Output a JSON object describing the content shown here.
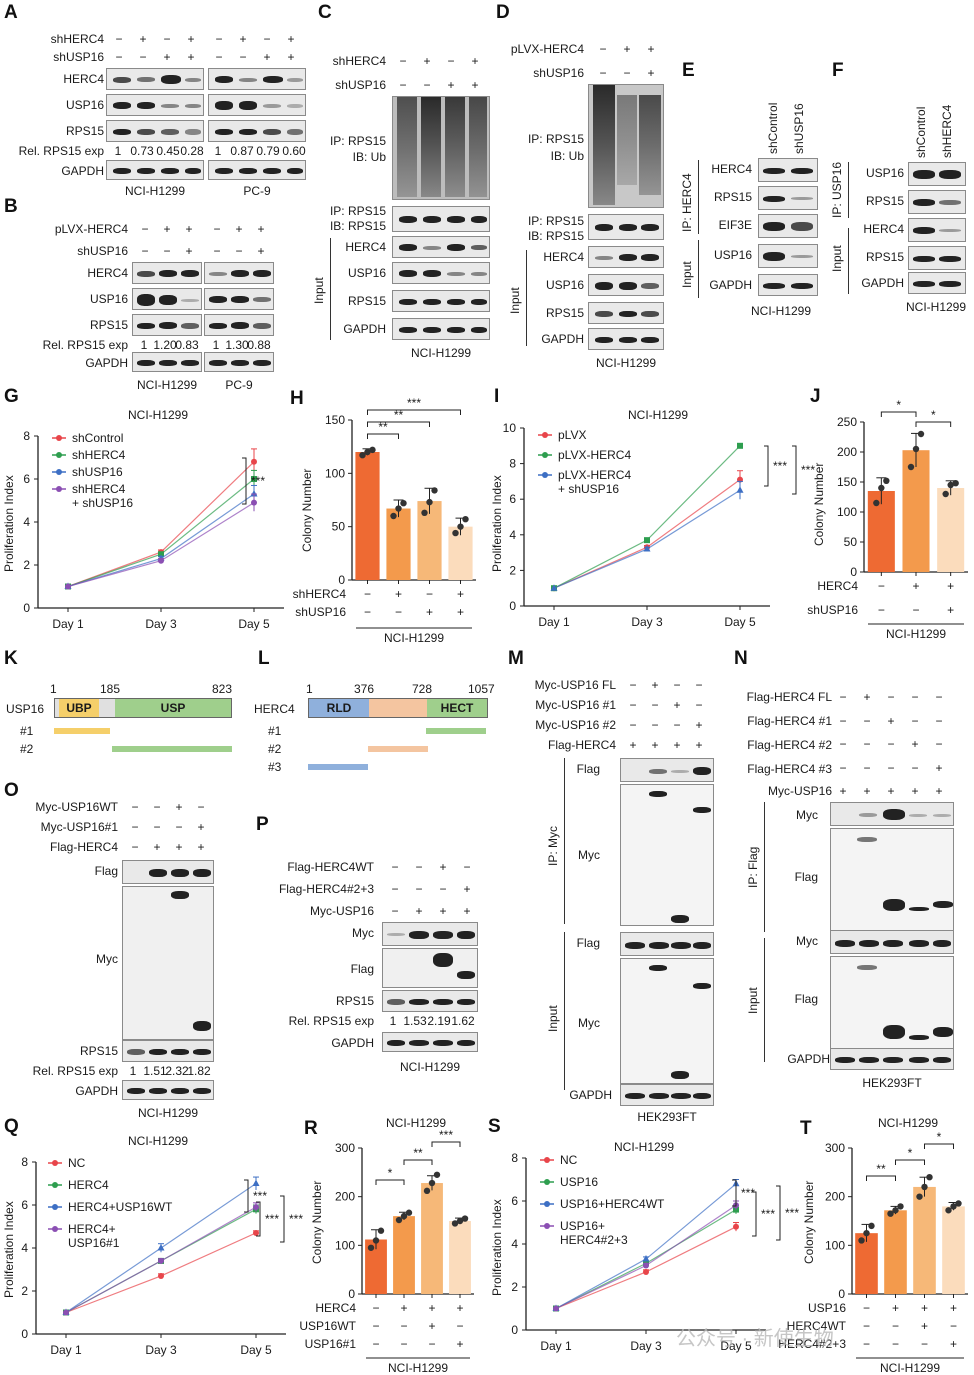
{
  "letters": [
    "A",
    "B",
    "C",
    "D",
    "E",
    "F",
    "G",
    "H",
    "I",
    "J",
    "K",
    "L",
    "M",
    "N",
    "O",
    "P",
    "Q",
    "R",
    "S",
    "T"
  ],
  "A": {
    "rows": [
      "shHERC4",
      "shUSP16"
    ],
    "signs1": [
      "−",
      "+",
      "−",
      "+"
    ],
    "signs2": [
      "−",
      "−",
      "+",
      "+"
    ],
    "bands": [
      "HERC4",
      "USP16",
      "RPS15",
      "GAPDH"
    ],
    "rel_label": "Rel. RPS15 exp",
    "rel1": [
      "1",
      "0.73",
      "0.45",
      "0.28"
    ],
    "rel2": [
      "1",
      "0.87",
      "0.79",
      "0.60"
    ],
    "cells": [
      "NCI-H1299",
      "PC-9"
    ]
  },
  "B": {
    "rows": [
      "pLVX-HERC4",
      "shUSP16"
    ],
    "signs1": [
      "−",
      "+",
      "+"
    ],
    "signs2": [
      "−",
      "−",
      "+"
    ],
    "bands": [
      "HERC4",
      "USP16",
      "RPS15",
      "GAPDH"
    ],
    "rel_label": "Rel. RPS15 exp",
    "rel1": [
      "1",
      "1.20",
      "0.83"
    ],
    "rel2": [
      "1",
      "1.30",
      "0.88"
    ],
    "cells": [
      "NCI-H1299",
      "PC-9"
    ]
  },
  "C": {
    "rows": [
      "shHERC4",
      "shUSP16"
    ],
    "signs1": [
      "−",
      "+",
      "−",
      "+"
    ],
    "signs2": [
      "−",
      "−",
      "+",
      "+"
    ],
    "ip1": "IP: RPS15",
    "ib1": "IB: Ub",
    "ip2": "IP: RPS15",
    "ib2": "IB: RPS15",
    "bands": [
      "HERC4",
      "USP16",
      "RPS15",
      "GAPDH"
    ],
    "input": "Input",
    "cell": "NCI-H1299"
  },
  "D": {
    "rows": [
      "pLVX-HERC4",
      "shUSP16"
    ],
    "signs1": [
      "−",
      "+",
      "+"
    ],
    "signs2": [
      "−",
      "−",
      "+"
    ],
    "ip1": "IP: RPS15",
    "ib1": "IB: Ub",
    "ip2": "IP: RPS15",
    "ib2": "IB: RPS15",
    "bands": [
      "HERC4",
      "USP16",
      "RPS15",
      "GAPDH"
    ],
    "input": "Input",
    "cell": "NCI-H1299"
  },
  "E": {
    "cols": [
      "shControl",
      "shUSP16"
    ],
    "ip": "IP: HERC4",
    "input": "Input",
    "bands": [
      "HERC4",
      "RPS15",
      "EIF3E",
      "USP16",
      "GAPDH"
    ],
    "cell": "NCI-H1299"
  },
  "F": {
    "cols": [
      "shControl",
      "shHERC4"
    ],
    "ip": "IP: USP16",
    "input": "Input",
    "bands": [
      "USP16",
      "RPS15",
      "HERC4",
      "RPS15",
      "GAPDH"
    ],
    "cell": "NCI-H1299"
  },
  "G": {
    "title": "NCI-H1299",
    "ylabel": "Proliferation Index",
    "sig": "***"
  },
  "H": {
    "ylabel": "Colony Number",
    "rows": [
      "shHERC4",
      "shUSP16"
    ],
    "signs1": [
      "−",
      "+",
      "−",
      "+"
    ],
    "signs2": [
      "−",
      "−",
      "+",
      "+"
    ],
    "sig": [
      "**",
      "**",
      "***"
    ],
    "cell": "NCI-H1299"
  },
  "I": {
    "title": "NCI-H1299",
    "ylabel": "Proliferation Index",
    "sig": [
      "***",
      "***"
    ]
  },
  "J": {
    "ylabel": "Colony Number",
    "rows": [
      "HERC4",
      "shUSP16"
    ],
    "signs1": [
      "−",
      "+",
      "+"
    ],
    "signs2": [
      "−",
      "−",
      "+"
    ],
    "sig": [
      "*",
      "*"
    ],
    "cell": "NCI-H1299"
  },
  "K": {
    "name": "USP16",
    "nums": [
      "1",
      "185",
      "823"
    ],
    "d1": "UBP",
    "d2": "USP",
    "c1": "#1",
    "c2": "#2"
  },
  "L": {
    "name": "HERC4",
    "nums": [
      "1",
      "376",
      "728",
      "1057"
    ],
    "d1": "RLD",
    "d3": "HECT",
    "c1": "#1",
    "c2": "#2",
    "c3": "#3"
  },
  "M": {
    "rows": [
      "Myc-USP16 FL",
      "Myc-USP16 #1",
      "Myc-USP16 #2",
      "Flag-HERC4"
    ],
    "signs": [
      [
        "−",
        "+",
        "−",
        "−"
      ],
      [
        "−",
        "−",
        "+",
        "−"
      ],
      [
        "−",
        "−",
        "−",
        "+"
      ],
      [
        "+",
        "+",
        "+",
        "+"
      ]
    ],
    "ip": "IP: Myc",
    "input": "Input",
    "b_ip": [
      "Flag",
      "Myc"
    ],
    "b_in": [
      "Flag",
      "Myc"
    ],
    "gapdh": "GAPDH",
    "cell": "HEK293FT"
  },
  "N": {
    "rows": [
      "Flag-HERC4 FL",
      "Flag-HERC4 #1",
      "Flag-HERC4 #2",
      "Flag-HERC4 #3",
      "Myc-USP16"
    ],
    "signs": [
      [
        "−",
        "+",
        "−",
        "−",
        "−"
      ],
      [
        "−",
        "−",
        "+",
        "−",
        "−"
      ],
      [
        "−",
        "−",
        "−",
        "+",
        "−"
      ],
      [
        "−",
        "−",
        "−",
        "−",
        "+"
      ],
      [
        "+",
        "+",
        "+",
        "+",
        "+"
      ]
    ],
    "ip": "IP: Flag",
    "input": "Input",
    "b_ip": [
      "Myc",
      "Flag"
    ],
    "b_in": [
      "Myc",
      "Flag"
    ],
    "gapdh": "GAPDH",
    "cell": "HEK293FT"
  },
  "O": {
    "rows": [
      "Myc-USP16WT",
      "Myc-USP16#1",
      "Flag-HERC4"
    ],
    "signs": [
      [
        "−",
        "−",
        "+",
        "−"
      ],
      [
        "−",
        "−",
        "−",
        "+"
      ],
      [
        "−",
        "+",
        "+",
        "+"
      ]
    ],
    "bands": [
      "Flag",
      "Myc",
      "RPS15"
    ],
    "rel_label": "Rel. RPS15 exp",
    "rel": [
      "1",
      "1.51",
      "2.32",
      "1.82"
    ],
    "gapdh": "GAPDH",
    "cell": "NCI-H1299"
  },
  "P": {
    "rows": [
      "Flag-HERC4WT",
      "Flag-HERC4#2+3",
      "Myc-USP16"
    ],
    "signs": [
      [
        "−",
        "−",
        "+",
        "−"
      ],
      [
        "−",
        "−",
        "−",
        "+"
      ],
      [
        "−",
        "+",
        "+",
        "+"
      ]
    ],
    "bands": [
      "Myc",
      "Flag",
      "RPS15"
    ],
    "rel_label": "Rel. RPS15 exp",
    "rel": [
      "1",
      "1.53",
      "2.19",
      "1.62"
    ],
    "gapdh": "GAPDH",
    "cell": "NCI-H1299"
  },
  "Q": {
    "title": "NCI-H1299",
    "ylabel": "Proliferation Index",
    "sig": [
      "***",
      "***",
      "***"
    ]
  },
  "R": {
    "title": "NCI-H1299",
    "ylabel": "Colony Number",
    "rows": [
      "HERC4",
      "USP16WT",
      "USP16#1"
    ],
    "signs": [
      [
        "−",
        "+",
        "+",
        "+"
      ],
      [
        "−",
        "−",
        "+",
        "−"
      ],
      [
        "−",
        "−",
        "−",
        "+"
      ]
    ],
    "sig": [
      "*",
      "**",
      "***"
    ],
    "cell": "NCI-H1299"
  },
  "S": {
    "title": "NCI-H1299",
    "ylabel": "Proliferation Index",
    "sig": [
      "***",
      "***",
      "***"
    ]
  },
  "T": {
    "title": "NCI-H1299",
    "ylabel": "Colony Number",
    "rows": [
      "USP16",
      "HERC4WT",
      "HERC4#2+3"
    ],
    "signs": [
      [
        "−",
        "+",
        "+",
        "+"
      ],
      [
        "−",
        "−",
        "+",
        "−"
      ],
      [
        "−",
        "−",
        "−",
        "+"
      ]
    ],
    "sig": [
      "**",
      "*",
      "*"
    ],
    "cell": "NCI-H1299"
  },
  "watermark": "公众号 · 新使生物",
  "chart_data": [
    {
      "id": "G",
      "type": "line",
      "x": [
        "Day 1",
        "Day 3",
        "Day 5"
      ],
      "ylim": [
        0,
        8
      ],
      "yticks": [
        0,
        2,
        4,
        6,
        8
      ],
      "series": [
        {
          "name": "shControl",
          "color": "#e8454a",
          "values": [
            1,
            2.6,
            6.8
          ],
          "err": [
            0,
            0.1,
            0.6
          ]
        },
        {
          "name": "shHERC4",
          "color": "#2e9e4f",
          "values": [
            1,
            2.5,
            6.0
          ],
          "err": [
            0,
            0.1,
            0.4
          ]
        },
        {
          "name": "shUSP16",
          "color": "#3d6fc4",
          "values": [
            1,
            2.3,
            5.3
          ],
          "err": [
            0,
            0.1,
            0.4
          ]
        },
        {
          "name": "shHERC4\n+ shUSP16",
          "color": "#8b4fb3",
          "values": [
            1,
            2.2,
            4.9
          ],
          "err": [
            0,
            0.1,
            0.4
          ]
        }
      ]
    },
    {
      "id": "H",
      "type": "bar",
      "ylim": [
        0,
        150
      ],
      "yticks": [
        0,
        50,
        100,
        150
      ],
      "values": [
        120,
        67,
        74,
        50
      ],
      "err": [
        3,
        8,
        12,
        8
      ],
      "colors": [
        "#ee6a33",
        "#f39a4c",
        "#f6b878",
        "#fbdcbc"
      ],
      "points": [
        [
          117,
          120,
          122
        ],
        [
          60,
          67,
          72
        ],
        [
          63,
          73,
          84
        ],
        [
          44,
          50,
          57
        ]
      ]
    },
    {
      "id": "I",
      "type": "line",
      "x": [
        "Day 1",
        "Day 3",
        "Day 5"
      ],
      "ylim": [
        0,
        10
      ],
      "yticks": [
        0,
        2,
        4,
        6,
        8,
        10
      ],
      "series": [
        {
          "name": "pLVX",
          "color": "#e8454a",
          "values": [
            1,
            3.3,
            7.1
          ],
          "err": [
            0,
            0.1,
            0.5
          ]
        },
        {
          "name": "pLVX-HERC4",
          "color": "#2e9e4f",
          "values": [
            1,
            3.7,
            9.0
          ],
          "err": [
            0,
            0.1,
            0.1
          ]
        },
        {
          "name": "pLVX-HERC4\n+ shUSP16",
          "color": "#3d6fc4",
          "values": [
            1,
            3.2,
            6.5
          ],
          "err": [
            0,
            0.1,
            0.5
          ]
        }
      ]
    },
    {
      "id": "J",
      "type": "bar",
      "ylim": [
        0,
        250
      ],
      "yticks": [
        0,
        50,
        100,
        150,
        200,
        250
      ],
      "values": [
        135,
        203,
        140
      ],
      "err": [
        22,
        28,
        12
      ],
      "colors": [
        "#ee6a33",
        "#f39a4c",
        "#fbdcbc"
      ],
      "points": [
        [
          115,
          140,
          152
        ],
        [
          175,
          205,
          230
        ],
        [
          130,
          145,
          148
        ]
      ]
    },
    {
      "id": "Q",
      "type": "line",
      "x": [
        "Day 1",
        "Day 3",
        "Day 5"
      ],
      "ylim": [
        0,
        8
      ],
      "yticks": [
        0,
        2,
        4,
        6,
        8
      ],
      "series": [
        {
          "name": "NC",
          "color": "#e8454a",
          "values": [
            1,
            2.7,
            4.7
          ],
          "err": [
            0,
            0.1,
            0.1
          ]
        },
        {
          "name": "HERC4",
          "color": "#2e9e4f",
          "values": [
            1,
            3.4,
            5.8
          ],
          "err": [
            0,
            0.1,
            0.2
          ]
        },
        {
          "name": "HERC4+USP16WT",
          "color": "#3d6fc4",
          "values": [
            1,
            4.0,
            7.0
          ],
          "err": [
            0,
            0.2,
            0.3
          ]
        },
        {
          "name": "HERC4+\nUSP16#1",
          "color": "#8b4fb3",
          "values": [
            1,
            3.4,
            5.9
          ],
          "err": [
            0,
            0.1,
            0.2
          ]
        }
      ]
    },
    {
      "id": "R",
      "type": "bar",
      "ylim": [
        0,
        300
      ],
      "yticks": [
        0,
        100,
        200,
        300
      ],
      "values": [
        112,
        160,
        228,
        150
      ],
      "err": [
        20,
        8,
        15,
        6
      ],
      "colors": [
        "#ee6a33",
        "#f39a4c",
        "#f6b878",
        "#fbdcbc"
      ],
      "points": [
        [
          95,
          110,
          130
        ],
        [
          152,
          160,
          167
        ],
        [
          212,
          228,
          245
        ],
        [
          145,
          150,
          155
        ]
      ]
    },
    {
      "id": "S",
      "type": "line",
      "x": [
        "Day 1",
        "Day 3",
        "Day 5"
      ],
      "ylim": [
        0,
        8
      ],
      "yticks": [
        0,
        2,
        4,
        6,
        8
      ],
      "series": [
        {
          "name": "NC",
          "color": "#e8454a",
          "values": [
            1,
            2.7,
            4.8
          ],
          "err": [
            0,
            0.1,
            0.2
          ]
        },
        {
          "name": "USP16",
          "color": "#2e9e4f",
          "values": [
            1,
            3.1,
            5.6
          ],
          "err": [
            0,
            0.1,
            0.2
          ]
        },
        {
          "name": "USP16+HERC4WT",
          "color": "#3d6fc4",
          "values": [
            1,
            3.3,
            6.8
          ],
          "err": [
            0,
            0.1,
            0.2
          ]
        },
        {
          "name": "USP16+\nHERC4#2+3",
          "color": "#8b4fb3",
          "values": [
            1,
            3.0,
            5.8
          ],
          "err": [
            0,
            0.1,
            0.2
          ]
        }
      ]
    },
    {
      "id": "T",
      "type": "bar",
      "ylim": [
        0,
        300
      ],
      "yticks": [
        0,
        100,
        200,
        300
      ],
      "values": [
        125,
        172,
        220,
        180
      ],
      "err": [
        18,
        8,
        20,
        8
      ],
      "colors": [
        "#ee6a33",
        "#f39a4c",
        "#f6b878",
        "#fbdcbc"
      ],
      "points": [
        [
          110,
          125,
          140
        ],
        [
          165,
          172,
          180
        ],
        [
          200,
          220,
          240
        ],
        [
          172,
          180,
          186
        ]
      ]
    }
  ]
}
